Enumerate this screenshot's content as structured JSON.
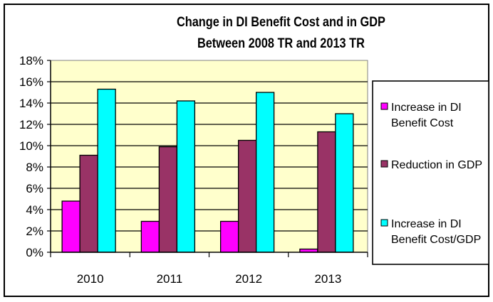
{
  "chart_data": {
    "type": "bar",
    "title": [
      "Change in DI Benefit Cost and in GDP",
      "Between 2008 TR and 2013 TR"
    ],
    "xlabel": "",
    "ylabel": "",
    "categories": [
      "2010",
      "2011",
      "2012",
      "2013"
    ],
    "ylim": [
      0,
      18
    ],
    "yticks": [
      0,
      2,
      4,
      6,
      8,
      10,
      12,
      14,
      16,
      18
    ],
    "ytick_labels": [
      "0%",
      "2%",
      "4%",
      "6%",
      "8%",
      "10%",
      "12%",
      "14%",
      "16%",
      "18%"
    ],
    "grid": true,
    "plot_background": "#FFFFCC",
    "legend_position": "right",
    "series": [
      {
        "name": "Increase in DI Benefit Cost",
        "legend_lines": [
          "Increase in DI",
          "Benefit Cost"
        ],
        "color": "#FF00FF",
        "values": [
          4.8,
          2.9,
          2.9,
          0.3
        ]
      },
      {
        "name": "Reduction in GDP",
        "legend_lines": [
          "Reduction in GDP"
        ],
        "color": "#993366",
        "values": [
          9.1,
          9.9,
          10.5,
          11.3
        ]
      },
      {
        "name": "Increase in DI Benefit Cost/GDP",
        "legend_lines": [
          "Increase in DI",
          "Benefit Cost/GDP"
        ],
        "color": "#00FFFF",
        "values": [
          15.3,
          14.2,
          15.0,
          13.0
        ]
      }
    ]
  }
}
